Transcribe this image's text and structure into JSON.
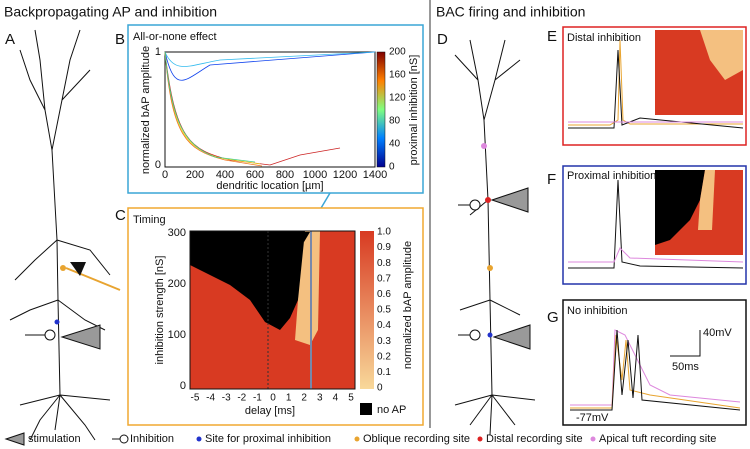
{
  "header": {
    "left_title": "Backpropagating AP and inhibition",
    "right_title": "BAC firing and inhibition"
  },
  "panels": {
    "A": {
      "label": "A"
    },
    "B": {
      "label": "B",
      "title": "All-or-none effect",
      "y_label": "normalized bAP amplitude",
      "y_ticks": [
        "1",
        "0"
      ],
      "x_label": "dendritic location [µm]",
      "x_ticks": [
        "0",
        "200",
        "400",
        "600",
        "800",
        "1000",
        "1200",
        "1400"
      ],
      "colorbar_label": "proximal inhibition [nS]",
      "colorbar_ticks": [
        "200",
        "160",
        "120",
        "80",
        "40",
        "0"
      ]
    },
    "C": {
      "label": "C",
      "title": "Timing",
      "y_label": "inhibition strength [nS]",
      "y_ticks": [
        "300",
        "200",
        "100",
        "0"
      ],
      "x_label": "delay [ms]",
      "x_ticks": [
        "-5",
        "-4",
        "-3",
        "-2",
        "-1",
        "0",
        "1",
        "2",
        "3",
        "4",
        "5"
      ],
      "colorbar_label": "normalized bAP amplitude",
      "colorbar_ticks": [
        "1.0",
        "0.9",
        "0.8",
        "0.7",
        "0.6",
        "0.5",
        "0.4",
        "0.3",
        "0.2",
        "0.1",
        "0"
      ],
      "no_ap": "no AP"
    },
    "D": {
      "label": "D"
    },
    "E": {
      "label": "E",
      "title": "Distal inhibition"
    },
    "F": {
      "label": "F",
      "title": "Proximal inhibition"
    },
    "G": {
      "label": "G",
      "title": "No inhibition",
      "scale_v": "40mV",
      "scale_t": "50ms",
      "rest": "-77mV"
    }
  },
  "legend": [
    "stimulation",
    "Inhibition",
    "Site for proximal inhibition",
    "Oblique recording site",
    "Distal recording site",
    "Apical tuft recording site"
  ]
}
